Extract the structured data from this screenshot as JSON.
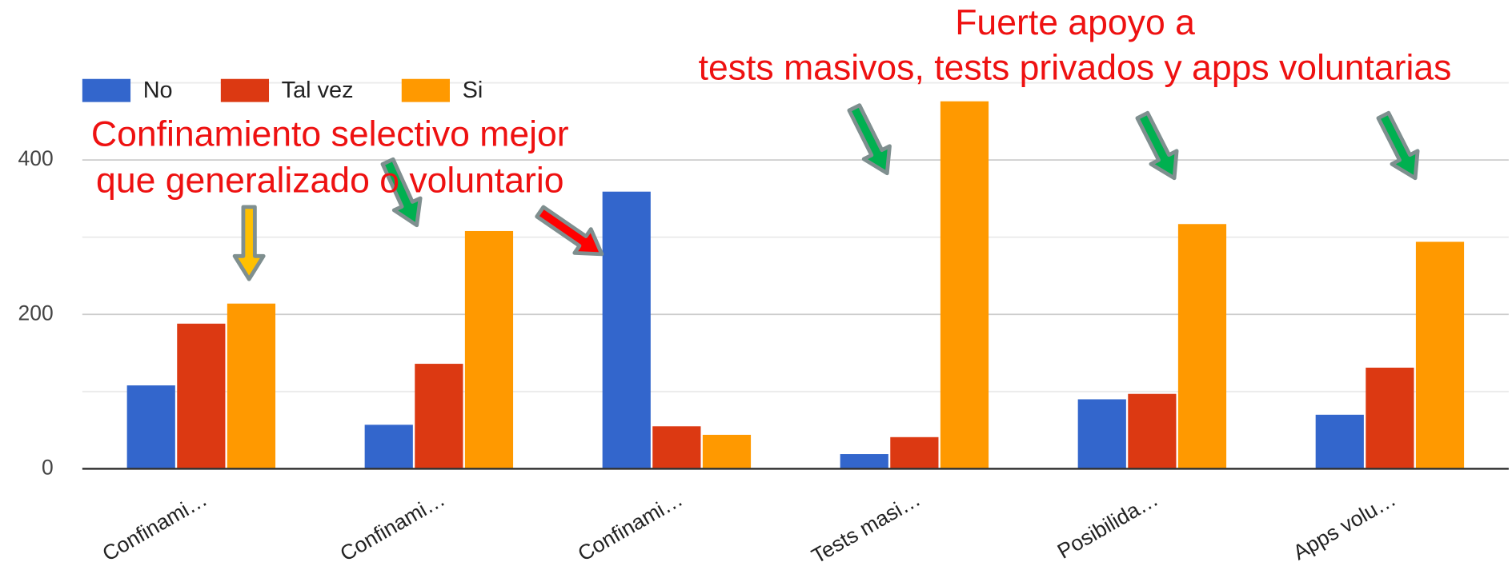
{
  "chart_data": {
    "type": "bar",
    "categories": [
      "Confinami…",
      "Confinami…",
      "Confinami…",
      "Tests masi…",
      "Posibilida…",
      "Apps volu…"
    ],
    "series": [
      {
        "name": "No",
        "color": "#3366cc",
        "values": [
          108,
          57,
          359,
          19,
          90,
          70
        ]
      },
      {
        "name": "Tal vez",
        "color": "#dc3912",
        "values": [
          188,
          136,
          55,
          41,
          97,
          131
        ]
      },
      {
        "name": "Si",
        "color": "#ff9900",
        "values": [
          214,
          308,
          44,
          476,
          317,
          294
        ]
      }
    ],
    "ylim": [
      0,
      500
    ],
    "yticks": [
      0,
      200,
      400
    ],
    "minor_yticks": [
      100,
      300,
      500
    ],
    "grid": true,
    "legend": "top-left",
    "annotations": [
      "Confinamiento selectivo mejor",
      "que generalizado o voluntario",
      "Fuerte apoyo a",
      "tests masivos, tests privados y apps voluntarias"
    ]
  }
}
